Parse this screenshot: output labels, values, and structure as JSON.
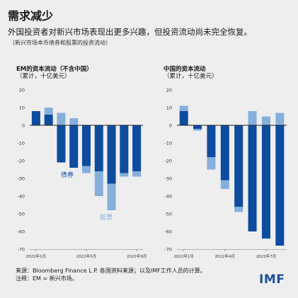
{
  "header": {
    "title": "需求减少",
    "subtitle": "外国投资者对新兴市场表现出更多兴趣，但投资流动尚未完全恢复。",
    "note": "（新兴市场本币债券和股票的投资流动）"
  },
  "footer": {
    "source": "来源：Bloomberg Finance L.P. 各国资料来源；以及IMF工作人员的计算。",
    "note": "注释：EM = 新兴市场。",
    "logo": "IMF"
  },
  "colors": {
    "bonds": "#0d4c9e",
    "equities": "#86afdc",
    "zero_line": "#222222"
  },
  "chart_data": [
    {
      "type": "bar",
      "stacked": true,
      "title": "EM的资本流动（不含中国）",
      "unit": "（累计，十亿美元）",
      "ylim": [
        -70,
        20
      ],
      "yticks": [
        20,
        10,
        0,
        -10,
        -20,
        -30,
        -40,
        -50,
        -60,
        -70
      ],
      "xticklabels": [
        {
          "index": 0,
          "label": "2022年1月"
        },
        {
          "index": 4,
          "label": "2022年5月"
        },
        {
          "index": 8,
          "label": "2022年9月"
        }
      ],
      "annotations": [
        {
          "text": "债券",
          "series": "bonds"
        },
        {
          "text": "股票",
          "series": "equities"
        }
      ],
      "series": [
        {
          "name": "债券",
          "key": "bonds",
          "values": [
            8,
            6,
            -21,
            -24,
            -23,
            -26,
            -33,
            -27,
            -26
          ]
        },
        {
          "name": "股票",
          "key": "equities",
          "values": [
            0,
            4,
            7,
            4,
            -4,
            -14,
            -15,
            -2,
            -3
          ]
        }
      ]
    },
    {
      "type": "bar",
      "stacked": true,
      "title": "中国的资本流动",
      "unit": "（累计，十亿美元）",
      "ylim": [
        -70,
        20
      ],
      "yticks": [
        20,
        10,
        0,
        -10,
        -20,
        -30,
        -40,
        -50,
        -60,
        -70
      ],
      "xticklabels": [
        {
          "index": 0,
          "label": "2022年1月"
        },
        {
          "index": 3,
          "label": "2022年4月"
        },
        {
          "index": 6,
          "label": "2022年7月"
        }
      ],
      "annotations": [],
      "series": [
        {
          "name": "债券",
          "key": "bonds",
          "values": [
            8,
            -2,
            -18,
            -31,
            -46,
            -60,
            -64,
            -68
          ]
        },
        {
          "name": "股票",
          "key": "equities",
          "values": [
            3,
            -1,
            -7,
            -5,
            -3,
            8,
            5,
            7
          ]
        }
      ]
    }
  ]
}
